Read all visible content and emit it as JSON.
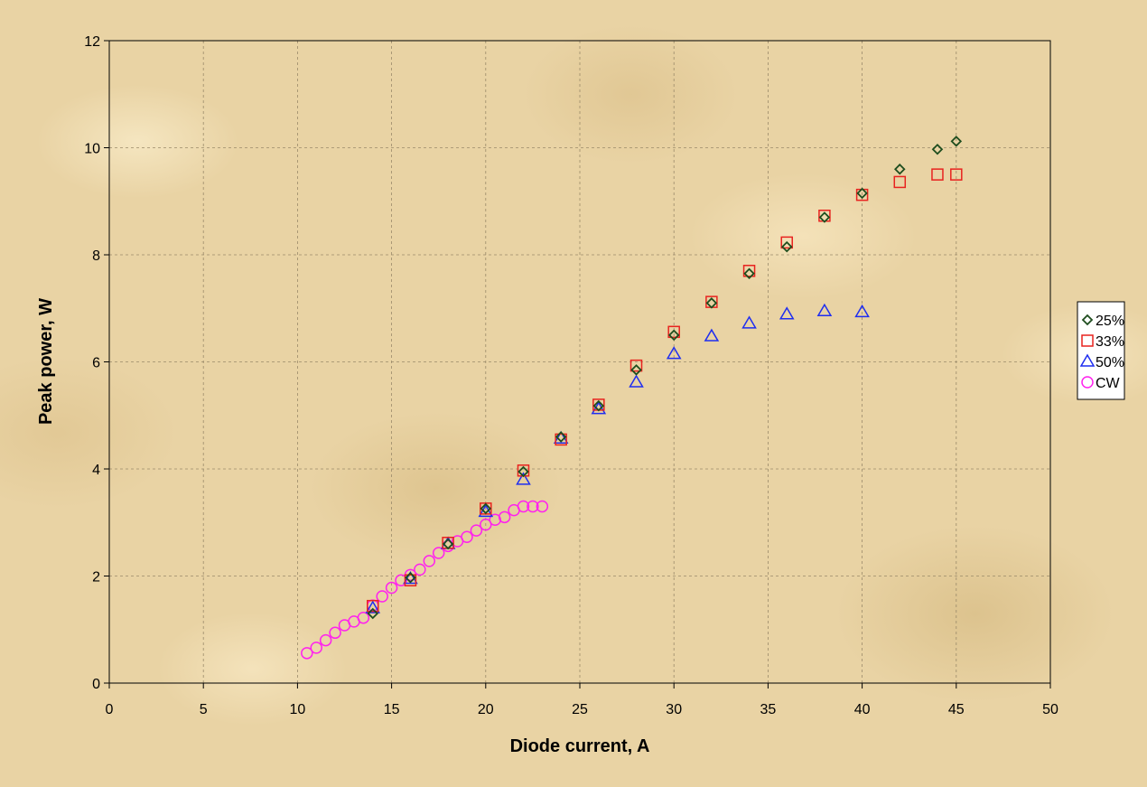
{
  "chart_data": {
    "type": "scatter",
    "xlabel": "Diode current, A",
    "ylabel": "Peak power, W",
    "xlim": [
      0,
      50
    ],
    "ylim": [
      0,
      12
    ],
    "xticks": [
      "0",
      "5",
      "10",
      "15",
      "20",
      "25",
      "30",
      "35",
      "40",
      "45",
      "50"
    ],
    "yticks": [
      "0",
      "2",
      "4",
      "6",
      "8",
      "10",
      "12"
    ],
    "grid": "dashed",
    "legend_position": "right",
    "series": [
      {
        "name": "25%",
        "marker": "diamond",
        "color": "#1e4d1e",
        "x": [
          14,
          16,
          18,
          20,
          22,
          24,
          26,
          28,
          30,
          32,
          34,
          36,
          38,
          40,
          42,
          44,
          45
        ],
        "y": [
          1.3,
          1.97,
          2.6,
          3.26,
          3.95,
          4.6,
          5.18,
          5.85,
          6.5,
          7.1,
          7.65,
          8.15,
          8.7,
          9.15,
          9.6,
          9.97,
          10.12
        ]
      },
      {
        "name": "33%",
        "marker": "square",
        "color": "#e8231f",
        "x": [
          14,
          16,
          18,
          20,
          22,
          24,
          26,
          28,
          30,
          32,
          34,
          36,
          38,
          40,
          42,
          44,
          45
        ],
        "y": [
          1.44,
          1.92,
          2.62,
          3.26,
          3.97,
          4.55,
          5.2,
          5.93,
          6.56,
          7.12,
          7.7,
          8.23,
          8.73,
          9.12,
          9.36,
          9.5,
          9.5
        ]
      },
      {
        "name": "50%",
        "marker": "triangle",
        "color": "#1f2ef0",
        "x": [
          14,
          16,
          18,
          20,
          22,
          24,
          26,
          28,
          30,
          32,
          34,
          36,
          38,
          40
        ],
        "y": [
          1.4,
          1.95,
          2.6,
          3.2,
          3.8,
          4.57,
          5.12,
          5.62,
          6.15,
          6.48,
          6.72,
          6.89,
          6.95,
          6.93
        ]
      },
      {
        "name": "CW",
        "marker": "circle",
        "color": "#ff22ee",
        "x": [
          10.5,
          11.0,
          11.5,
          12.0,
          12.5,
          13.0,
          13.5,
          14.0,
          14.5,
          15.0,
          15.5,
          16.0,
          16.5,
          17.0,
          17.5,
          18.0,
          18.5,
          19.0,
          19.5,
          20.0,
          20.5,
          21.0,
          21.5,
          22.0,
          22.5,
          23.0
        ],
        "y": [
          0.56,
          0.66,
          0.8,
          0.94,
          1.08,
          1.15,
          1.22,
          1.45,
          1.62,
          1.78,
          1.92,
          2.02,
          2.12,
          2.28,
          2.43,
          2.56,
          2.65,
          2.73,
          2.85,
          2.96,
          3.05,
          3.1,
          3.23,
          3.3,
          3.3,
          3.3
        ]
      }
    ]
  }
}
